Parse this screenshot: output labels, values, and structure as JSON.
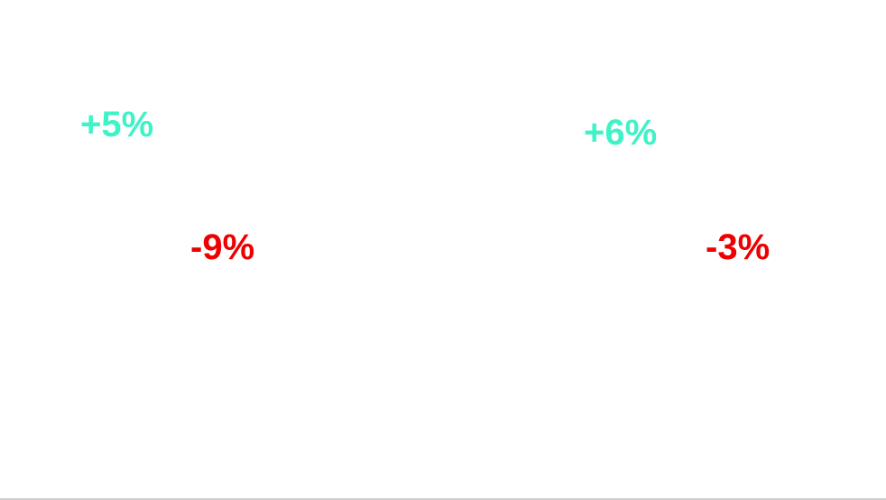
{
  "colors": {
    "positive": "#3ff2c7",
    "negative": "#ee0000",
    "background": "#ffffff",
    "divider": "#cfcfcf"
  },
  "stats": [
    {
      "text": "+5%",
      "sign": "positive",
      "value": 5
    },
    {
      "text": "-9%",
      "sign": "negative",
      "value": -9
    },
    {
      "text": "+6%",
      "sign": "positive",
      "value": 6
    },
    {
      "text": "-3%",
      "sign": "negative",
      "value": -3
    }
  ]
}
